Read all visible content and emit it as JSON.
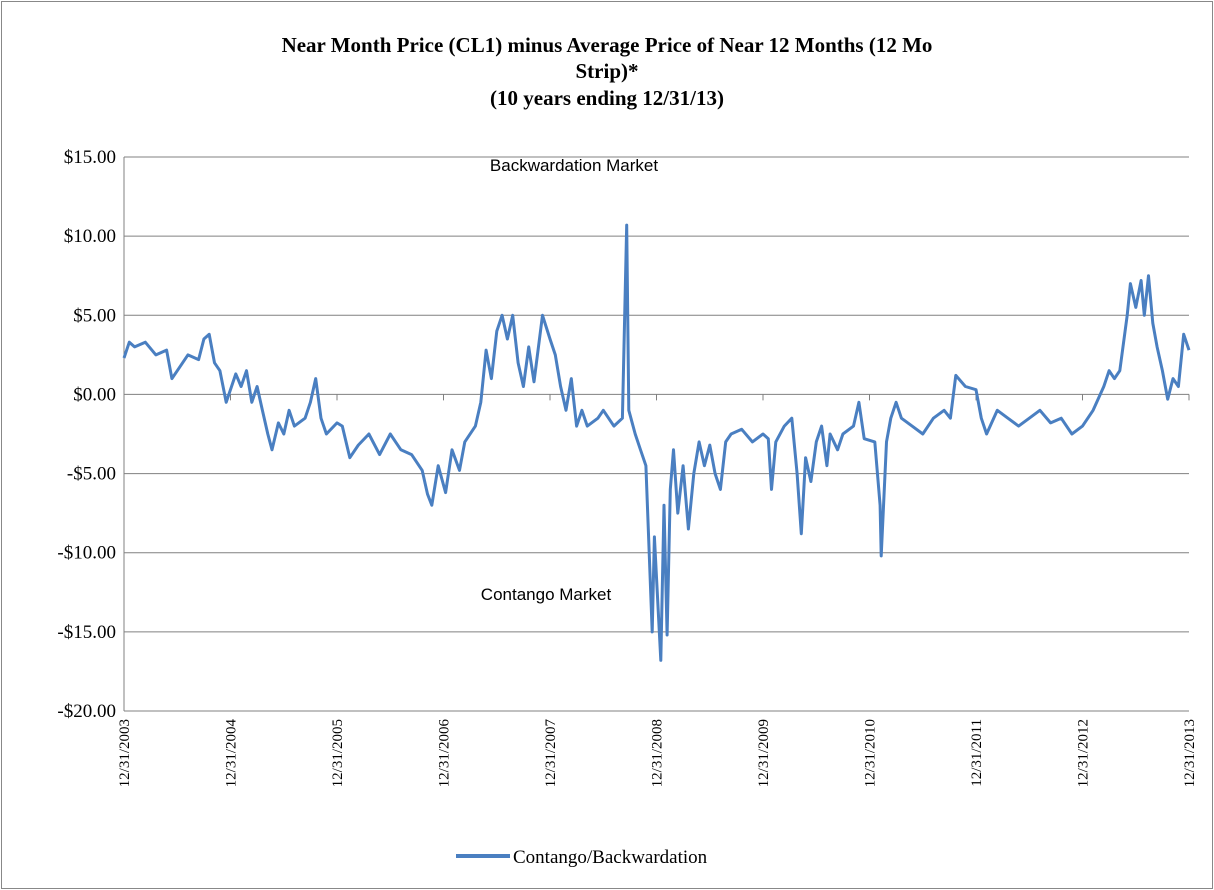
{
  "chart_data": {
    "type": "line",
    "title": [
      "Near Month Price (CL1) minus Average Price of Near 12 Months (12 Mo",
      "Strip)*"
    ],
    "subtitle": "(10 years ending 12/31/13)",
    "annotations": [
      "Backwardation Market",
      "Contango Market"
    ],
    "xlim": [
      2004,
      2014
    ],
    "xticks": [
      {
        "value": 2004,
        "label": "12/31/2003"
      },
      {
        "value": 2005,
        "label": "12/31/2004"
      },
      {
        "value": 2006,
        "label": "12/31/2005"
      },
      {
        "value": 2007,
        "label": "12/31/2006"
      },
      {
        "value": 2008,
        "label": "12/31/2007"
      },
      {
        "value": 2009,
        "label": "12/31/2008"
      },
      {
        "value": 2010,
        "label": "12/31/2009"
      },
      {
        "value": 2011,
        "label": "12/31/2010"
      },
      {
        "value": 2012,
        "label": "12/31/2011"
      },
      {
        "value": 2013,
        "label": "12/31/2012"
      },
      {
        "value": 2014,
        "label": "12/31/2013"
      }
    ],
    "ylim": [
      -20,
      15
    ],
    "yticks": [
      {
        "value": -20,
        "label": "-$20.00"
      },
      {
        "value": -15,
        "label": "-$15.00"
      },
      {
        "value": -10,
        "label": "-$10.00"
      },
      {
        "value": -5,
        "label": "-$5.00"
      },
      {
        "value": 0,
        "label": "$0.00"
      },
      {
        "value": 5,
        "label": "$5.00"
      },
      {
        "value": 10,
        "label": "$10.00"
      },
      {
        "value": 15,
        "label": "$15.00"
      }
    ],
    "grid": true,
    "legend": "bottom",
    "x": [
      2004,
      2004.05,
      2004.1,
      2004.2,
      2004.3,
      2004.4,
      2004.45,
      2004.5,
      2004.6,
      2004.7,
      2004.75,
      2004.8,
      2004.85,
      2004.9,
      2004.96,
      2005.05,
      2005.1,
      2005.15,
      2005.2,
      2005.25,
      2005.3,
      2005.35,
      2005.39,
      2005.45,
      2005.5,
      2005.55,
      2005.6,
      2005.7,
      2005.75,
      2005.8,
      2005.85,
      2005.9,
      2006.0,
      2006.05,
      2006.12,
      2006.2,
      2006.3,
      2006.4,
      2006.5,
      2006.55,
      2006.6,
      2006.7,
      2006.8,
      2006.85,
      2006.89,
      2006.95,
      2007.02,
      2007.08,
      2007.15,
      2007.2,
      2007.3,
      2007.35,
      2007.4,
      2007.45,
      2007.5,
      2007.55,
      2007.6,
      2007.65,
      2007.7,
      2007.75,
      2007.8,
      2007.85,
      2007.93,
      2008.0,
      2008.05,
      2008.1,
      2008.15,
      2008.2,
      2008.25,
      2008.3,
      2008.35,
      2008.45,
      2008.5,
      2008.6,
      2008.68,
      2008.72,
      2008.74,
      2008.8,
      2008.85,
      2008.9,
      2008.92,
      2008.96,
      2008.98,
      2009.04,
      2009.07,
      2009.1,
      2009.13,
      2009.16,
      2009.2,
      2009.25,
      2009.3,
      2009.35,
      2009.4,
      2009.45,
      2009.5,
      2009.55,
      2009.6,
      2009.65,
      2009.7,
      2009.8,
      2009.9,
      2010.0,
      2010.05,
      2010.08,
      2010.12,
      2010.2,
      2010.27,
      2010.32,
      2010.36,
      2010.4,
      2010.45,
      2010.5,
      2010.55,
      2010.6,
      2010.63,
      2010.7,
      2010.75,
      2010.85,
      2010.9,
      2010.95,
      2011.05,
      2011.1,
      2011.11,
      2011.16,
      2011.2,
      2011.25,
      2011.3,
      2011.4,
      2011.5,
      2011.6,
      2011.7,
      2011.76,
      2011.81,
      2011.9,
      2012.0,
      2012.05,
      2012.1,
      2012.2,
      2012.3,
      2012.4,
      2012.5,
      2012.6,
      2012.7,
      2012.8,
      2012.9,
      2013.0,
      2013.1,
      2013.2,
      2013.25,
      2013.3,
      2013.35,
      2013.42,
      2013.45,
      2013.5,
      2013.55,
      2013.58,
      2013.62,
      2013.66,
      2013.7,
      2013.75,
      2013.8,
      2013.85,
      2013.9,
      2013.95,
      2014.0
    ],
    "series": [
      {
        "name": "Contango/Backwardation",
        "color": "#4a7fc1",
        "values": [
          2.3,
          3.3,
          3.0,
          3.3,
          2.5,
          2.8,
          1.0,
          1.5,
          2.5,
          2.2,
          3.5,
          3.8,
          2.0,
          1.5,
          -0.5,
          1.3,
          0.5,
          1.5,
          -0.5,
          0.5,
          -1.0,
          -2.5,
          -3.5,
          -1.8,
          -2.5,
          -1.0,
          -2.0,
          -1.5,
          -0.5,
          1.0,
          -1.5,
          -2.5,
          -1.8,
          -2.0,
          -4.0,
          -3.2,
          -2.5,
          -3.8,
          -2.5,
          -3.0,
          -3.5,
          -3.8,
          -4.8,
          -6.3,
          -7.0,
          -4.5,
          -6.2,
          -3.5,
          -4.8,
          -3.0,
          -2.0,
          -0.5,
          2.8,
          1.0,
          4.0,
          5.0,
          3.5,
          5.0,
          2.0,
          0.5,
          3.0,
          0.8,
          5.0,
          3.5,
          2.5,
          0.5,
          -1.0,
          1.0,
          -2.0,
          -1.0,
          -2.0,
          -1.5,
          -1.0,
          -2.0,
          -1.5,
          10.7,
          -1.0,
          -2.5,
          -3.5,
          -4.5,
          -8.0,
          -15.0,
          -9.0,
          -16.8,
          -7.0,
          -15.2,
          -6.0,
          -3.5,
          -7.5,
          -4.5,
          -8.5,
          -5.0,
          -3.0,
          -4.5,
          -3.2,
          -5.0,
          -6.0,
          -3.0,
          -2.5,
          -2.2,
          -3.0,
          -2.5,
          -2.8,
          -6.0,
          -3.0,
          -2.0,
          -1.5,
          -5.0,
          -8.8,
          -4.0,
          -5.5,
          -3.0,
          -2.0,
          -4.5,
          -2.5,
          -3.5,
          -2.5,
          -2.0,
          -0.5,
          -2.8,
          -3.0,
          -7.0,
          -10.2,
          -3.0,
          -1.5,
          -0.5,
          -1.5,
          -2.0,
          -2.5,
          -1.5,
          -1.0,
          -1.5,
          1.2,
          0.5,
          0.3,
          -1.5,
          -2.5,
          -1.0,
          -1.5,
          -2.0,
          -1.5,
          -1.0,
          -1.8,
          -1.5,
          -2.5,
          -2.0,
          -1.0,
          0.5,
          1.5,
          1.0,
          1.5,
          5.0,
          7.0,
          5.5,
          7.2,
          5.0,
          7.5,
          4.5,
          3.0,
          1.5,
          -0.3,
          1.0,
          0.5,
          3.8,
          2.8
        ]
      }
    ]
  }
}
